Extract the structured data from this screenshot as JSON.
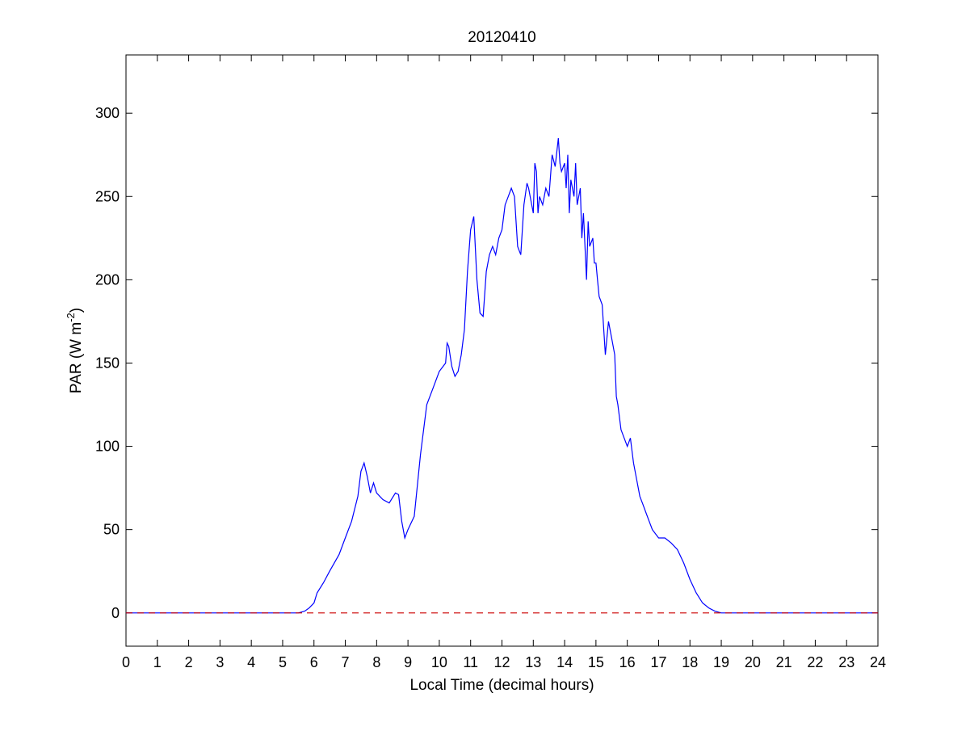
{
  "chart_data": {
    "type": "line",
    "title": "20120410",
    "xlabel": "Local Time (decimal hours)",
    "ylabel": {
      "base": "PAR (W m",
      "sup": "-2",
      "tail": ")"
    },
    "xlim": [
      0,
      24
    ],
    "ylim": [
      -20,
      335
    ],
    "xticks": [
      0,
      1,
      2,
      3,
      4,
      5,
      6,
      7,
      8,
      9,
      10,
      11,
      12,
      13,
      14,
      15,
      16,
      17,
      18,
      19,
      20,
      21,
      22,
      23,
      24
    ],
    "yticks": [
      0,
      50,
      100,
      150,
      200,
      250,
      300
    ],
    "grid": false,
    "legend": "none",
    "series": [
      {
        "color": "#0000ff",
        "style": "solid",
        "x": [
          0,
          5.5,
          5.7,
          5.85,
          6.0,
          6.1,
          6.3,
          6.5,
          6.8,
          7.0,
          7.2,
          7.4,
          7.5,
          7.6,
          7.7,
          7.8,
          7.9,
          8.0,
          8.2,
          8.4,
          8.6,
          8.7,
          8.8,
          8.9,
          9.0,
          9.2,
          9.4,
          9.6,
          9.8,
          10.0,
          10.2,
          10.25,
          10.3,
          10.4,
          10.5,
          10.6,
          10.7,
          10.8,
          10.9,
          11.0,
          11.1,
          11.2,
          11.3,
          11.4,
          11.5,
          11.6,
          11.7,
          11.8,
          11.9,
          12.0,
          12.1,
          12.2,
          12.3,
          12.4,
          12.5,
          12.6,
          12.7,
          12.8,
          12.85,
          12.9,
          13.0,
          13.05,
          13.1,
          13.15,
          13.2,
          13.3,
          13.4,
          13.5,
          13.6,
          13.7,
          13.8,
          13.85,
          13.9,
          14.0,
          14.05,
          14.1,
          14.15,
          14.2,
          14.3,
          14.35,
          14.4,
          14.5,
          14.55,
          14.6,
          14.7,
          14.75,
          14.8,
          14.9,
          14.95,
          15.0,
          15.05,
          15.1,
          15.2,
          15.3,
          15.4,
          15.5,
          15.55,
          15.6,
          15.65,
          15.7,
          15.8,
          15.9,
          16.0,
          16.1,
          16.2,
          16.3,
          16.4,
          16.5,
          16.6,
          16.7,
          16.8,
          17.0,
          17.2,
          17.4,
          17.6,
          17.8,
          18.0,
          18.2,
          18.4,
          18.6,
          18.8,
          19.0,
          24.0
        ],
        "y": [
          0,
          0,
          1,
          3,
          6,
          12,
          18,
          25,
          35,
          45,
          55,
          70,
          85,
          90,
          82,
          72,
          78,
          72,
          68,
          66,
          72,
          71,
          55,
          45,
          50,
          58,
          95,
          125,
          135,
          145,
          150,
          162,
          160,
          148,
          142,
          145,
          155,
          170,
          205,
          230,
          238,
          200,
          180,
          178,
          205,
          215,
          220,
          215,
          225,
          230,
          245,
          250,
          255,
          250,
          220,
          215,
          245,
          258,
          255,
          250,
          240,
          270,
          265,
          240,
          250,
          245,
          255,
          250,
          275,
          268,
          285,
          270,
          265,
          270,
          255,
          275,
          240,
          260,
          250,
          270,
          245,
          255,
          225,
          240,
          200,
          235,
          220,
          225,
          210,
          210,
          200,
          190,
          185,
          155,
          175,
          165,
          160,
          155,
          130,
          125,
          110,
          105,
          100,
          105,
          90,
          80,
          70,
          65,
          60,
          55,
          50,
          45,
          45,
          42,
          38,
          30,
          20,
          12,
          6,
          3,
          1,
          0,
          0
        ]
      },
      {
        "color": "#cc0000",
        "style": "dashed",
        "x": [
          0,
          24
        ],
        "y": [
          0,
          0
        ]
      }
    ]
  }
}
